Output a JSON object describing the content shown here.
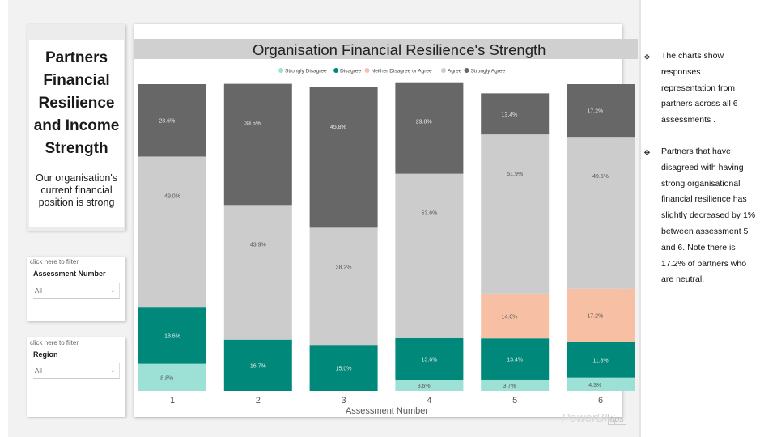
{
  "left_panel": {
    "title_lines": [
      "Partners",
      "Financial",
      "Resilience",
      "and Income",
      "Strength"
    ],
    "subtitle_lines": [
      "Our organisation's",
      "current financial",
      "position is strong"
    ]
  },
  "slicers": [
    {
      "hint": "click here to filter",
      "title": "Assessment Number",
      "value": "All"
    },
    {
      "hint": "click here to filter",
      "title": "Region",
      "value": "All"
    }
  ],
  "chart_data": {
    "type": "bar",
    "stacked": true,
    "normalized": true,
    "title": "Organisation Financial Resilience's Strength",
    "xlabel": "Assessment Number",
    "categories": [
      "1",
      "2",
      "3",
      "4",
      "5",
      "6"
    ],
    "series": [
      {
        "name": "Strongly Disagree",
        "color": "#9ce0d6",
        "values": [
          8.8,
          0.0,
          0.0,
          3.6,
          3.7,
          4.3
        ],
        "labels": [
          "8.8%",
          "",
          "",
          "3.6%",
          "3.7%",
          "4.3%"
        ]
      },
      {
        "name": "Disagree",
        "color": "#00897b",
        "values": [
          18.6,
          16.7,
          15.0,
          13.6,
          13.4,
          11.8
        ],
        "labels": [
          "18.6%",
          "16.7%",
          "15.0%",
          "13.6%",
          "13.4%",
          "11.8%"
        ]
      },
      {
        "name": "Neither Disagree or Agree",
        "color": "#f7c0a4",
        "values": [
          0.0,
          0.0,
          0.0,
          0.0,
          14.6,
          17.2
        ],
        "labels": [
          "",
          "",
          "",
          "",
          "14.6%",
          "17.2%"
        ]
      },
      {
        "name": "Agree",
        "color": "#cccccc",
        "values": [
          49.0,
          43.9,
          38.2,
          53.6,
          51.9,
          49.5
        ],
        "labels": [
          "49.0%",
          "43.9%",
          "38.2%",
          "53.6%",
          "51.9%",
          "49.5%"
        ]
      },
      {
        "name": "Strongly Agree",
        "color": "#676767",
        "values": [
          23.6,
          39.5,
          45.8,
          29.8,
          13.4,
          17.2
        ],
        "labels": [
          "23.6%",
          "39.5%",
          "45.8%",
          "29.8%",
          "13.4%",
          "17.2%"
        ]
      }
    ],
    "ylim": [
      0,
      100
    ],
    "grid": false,
    "legend_position": "top"
  },
  "notes": {
    "bullet_symbol": "❖",
    "items": [
      [
        "The charts show",
        "responses",
        "representation from",
        "partners across all 6",
        "assessments ."
      ],
      [
        "Partners that have",
        "disagreed with having",
        "strong organisational",
        "financial resilience has",
        "slightly decreased by 1%",
        "between assessment 5",
        "and 6. Note there is",
        "17.2% of partners who",
        "are neutral."
      ]
    ]
  },
  "watermark": {
    "text": "PowerBI",
    "box": "tips"
  }
}
